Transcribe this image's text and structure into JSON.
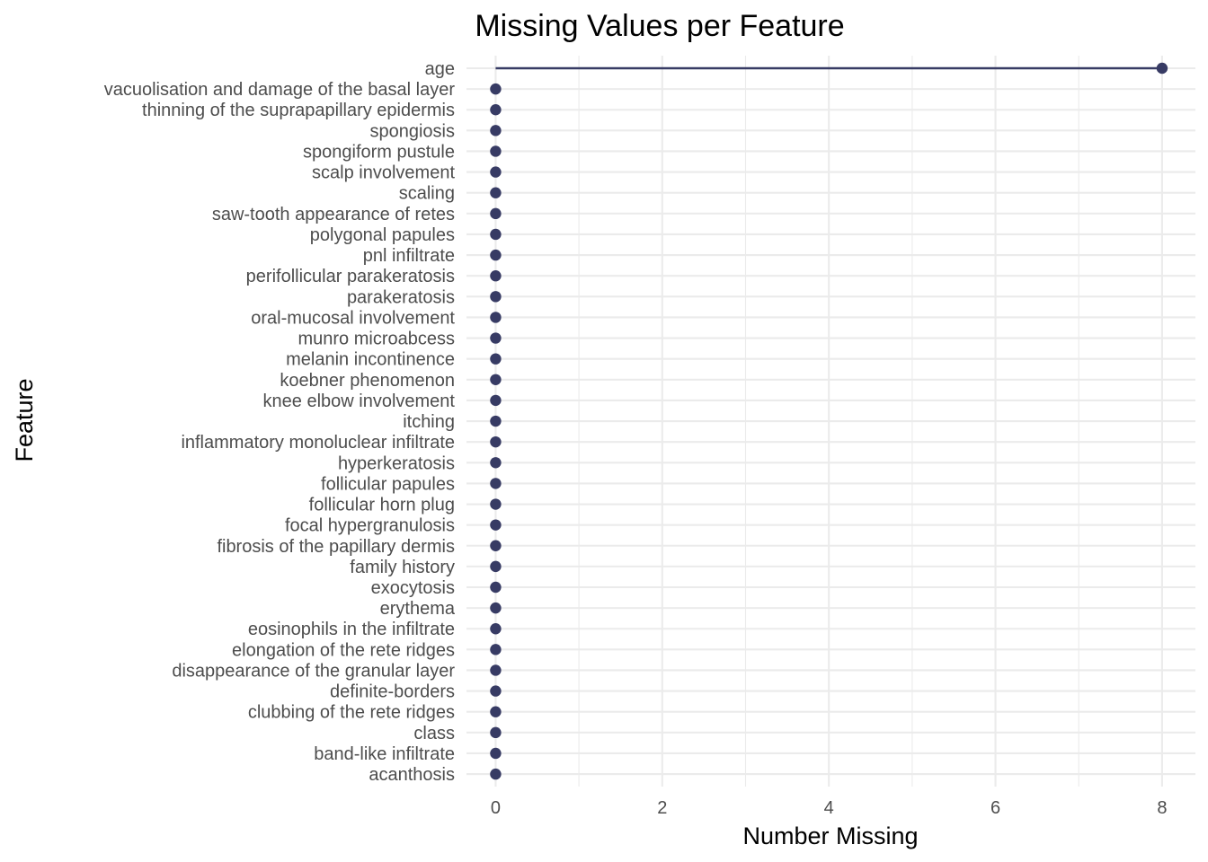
{
  "chart_data": {
    "type": "lollipop",
    "title": "Missing Values per Feature",
    "xlabel": "Number Missing",
    "ylabel": "Feature",
    "xlim": [
      -0.35,
      8.4
    ],
    "xticks": [
      0,
      2,
      4,
      6,
      8
    ],
    "grid": true,
    "legend": "none",
    "point_color": "#373B64",
    "categories": [
      "age",
      "vacuolisation and damage of the basal layer",
      "thinning of the suprapapillary epidermis",
      "spongiosis",
      "spongiform pustule",
      "scalp involvement",
      "scaling",
      "saw-tooth appearance of retes",
      "polygonal papules",
      "pnl infiltrate",
      "perifollicular parakeratosis",
      "parakeratosis",
      "oral-mucosal involvement",
      "munro microabcess",
      "melanin incontinence",
      "koebner phenomenon",
      "knee elbow involvement",
      "itching",
      "inflammatory monoluclear infiltrate",
      "hyperkeratosis",
      "follicular papules",
      "follicular horn plug",
      "focal hypergranulosis",
      "fibrosis of the papillary dermis",
      "family history",
      "exocytosis",
      "erythema",
      "eosinophils in the infiltrate",
      "elongation of the rete ridges",
      "disappearance of the granular layer",
      "definite-borders",
      "clubbing of the rete ridges",
      "class",
      "band-like infiltrate",
      "acanthosis"
    ],
    "values": [
      8,
      0,
      0,
      0,
      0,
      0,
      0,
      0,
      0,
      0,
      0,
      0,
      0,
      0,
      0,
      0,
      0,
      0,
      0,
      0,
      0,
      0,
      0,
      0,
      0,
      0,
      0,
      0,
      0,
      0,
      0,
      0,
      0,
      0,
      0
    ]
  }
}
